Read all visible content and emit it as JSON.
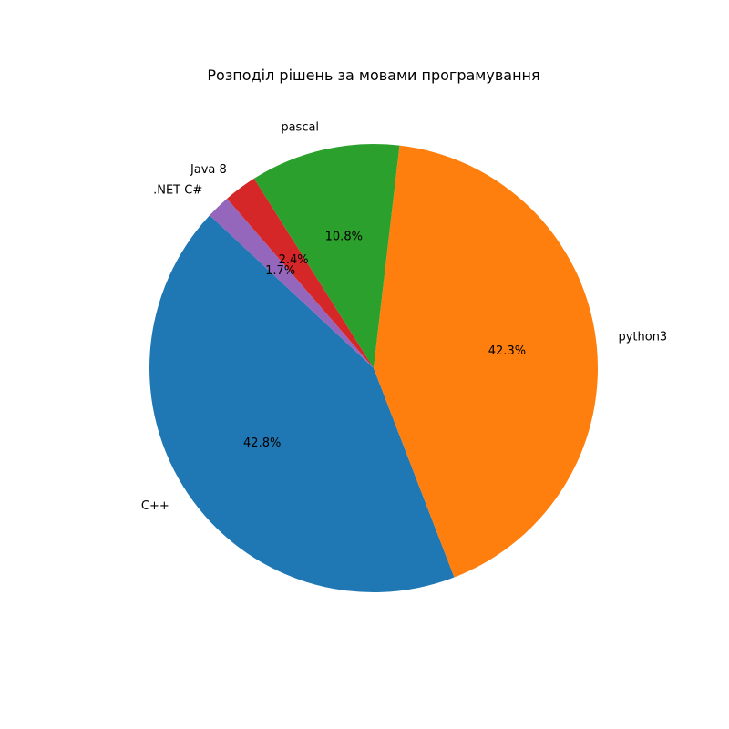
{
  "chart_data": {
    "type": "pie",
    "title": "Розподіл рішень за мовами програмування",
    "start_angle_deg": 137,
    "direction": "counterclockwise",
    "slices": [
      {
        "label": "C++",
        "value": 42.8,
        "pct_label": "42.8%",
        "color": "#1f77b4"
      },
      {
        "label": "python3",
        "value": 42.3,
        "pct_label": "42.3%",
        "color": "#ff7f0e"
      },
      {
        "label": "pascal",
        "value": 10.8,
        "pct_label": "10.8%",
        "color": "#2ca02c"
      },
      {
        "label": "Java 8",
        "value": 2.4,
        "pct_label": "2.4%",
        "color": "#d62728"
      },
      {
        "label": ".NET C#",
        "value": 1.7,
        "pct_label": "1.7%",
        "color": "#9467bd"
      }
    ]
  }
}
